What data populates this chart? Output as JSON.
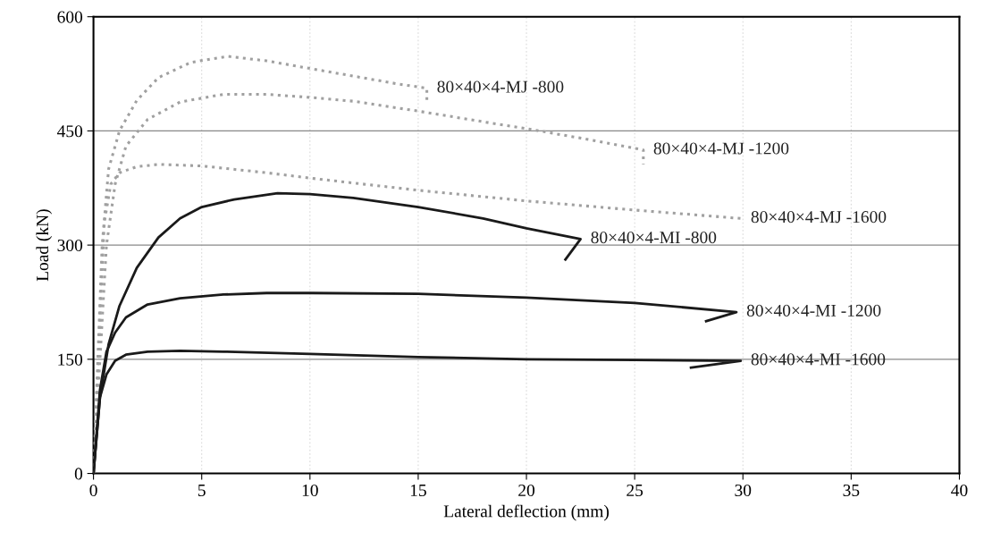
{
  "chart_data": {
    "type": "line",
    "xlabel": "Lateral deflection (mm)",
    "ylabel": "Load (kN)",
    "xlim": [
      0,
      40
    ],
    "xticks": [
      0,
      5,
      10,
      15,
      20,
      25,
      30,
      35,
      40
    ],
    "ylim": [
      0,
      600
    ],
    "yticks": [
      0,
      150,
      300,
      450,
      600
    ],
    "grid": true,
    "legend": false,
    "marker": "none",
    "series": [
      {
        "name": "80×40×4-MJ -800",
        "color": "#a0a0a0",
        "line_style": "dotted",
        "x": [
          0,
          0.2,
          0.4,
          0.7,
          1.2,
          2,
          3,
          4.5,
          6.2,
          8,
          10,
          12,
          14,
          15.4,
          15.4
        ],
        "values": [
          0,
          150,
          300,
          400,
          450,
          490,
          520,
          540,
          548,
          542,
          532,
          522,
          512,
          506,
          486
        ]
      },
      {
        "name": "80×40×4-MJ -1200",
        "color": "#a0a0a0",
        "line_style": "dotted",
        "x": [
          0,
          0.3,
          0.6,
          1,
          1.5,
          2.5,
          4,
          6,
          8,
          10,
          12,
          15,
          18,
          20,
          23,
          25.4,
          25.4
        ],
        "values": [
          0,
          150,
          300,
          380,
          430,
          465,
          488,
          498,
          498,
          494,
          489,
          476,
          462,
          453,
          438,
          425,
          406
        ]
      },
      {
        "name": "80×40×4-MJ -1600",
        "color": "#a0a0a0",
        "line_style": "dotted",
        "x": [
          0,
          0.3,
          0.5,
          0.8,
          1.2,
          2,
          3,
          5,
          8,
          10,
          15,
          20,
          25,
          29.9
        ],
        "values": [
          0,
          200,
          330,
          380,
          395,
          403,
          406,
          404,
          395,
          388,
          372,
          358,
          346,
          335
        ]
      },
      {
        "name": "80×40×4-MI -800",
        "color": "#1a1a1a",
        "line_style": "solid",
        "x": [
          0,
          0.3,
          0.7,
          1.2,
          2,
          3,
          4,
          5,
          6.5,
          8.5,
          10,
          12,
          15,
          18,
          20,
          22.5,
          21.8
        ],
        "values": [
          0,
          100,
          170,
          220,
          270,
          310,
          335,
          350,
          360,
          368,
          367,
          362,
          350,
          335,
          322,
          308,
          281
        ]
      },
      {
        "name": "80×40×4-MI -1200",
        "color": "#1a1a1a",
        "line_style": "solid",
        "x": [
          0,
          0.3,
          0.6,
          1,
          1.5,
          2.5,
          4,
          6,
          8,
          10,
          15,
          20,
          25,
          29.7,
          28.3
        ],
        "values": [
          0,
          110,
          160,
          185,
          205,
          222,
          230,
          235,
          237,
          237,
          236,
          231,
          224,
          212,
          200
        ]
      },
      {
        "name": "80×40×4-MI -1600",
        "color": "#1a1a1a",
        "line_style": "solid",
        "x": [
          0,
          0.3,
          0.6,
          1,
          1.5,
          2.5,
          4,
          6,
          10,
          15,
          20,
          25,
          29.9,
          27.6
        ],
        "values": [
          0,
          100,
          130,
          148,
          156,
          160,
          161,
          160,
          157,
          153,
          150,
          149,
          148,
          139
        ]
      }
    ]
  }
}
